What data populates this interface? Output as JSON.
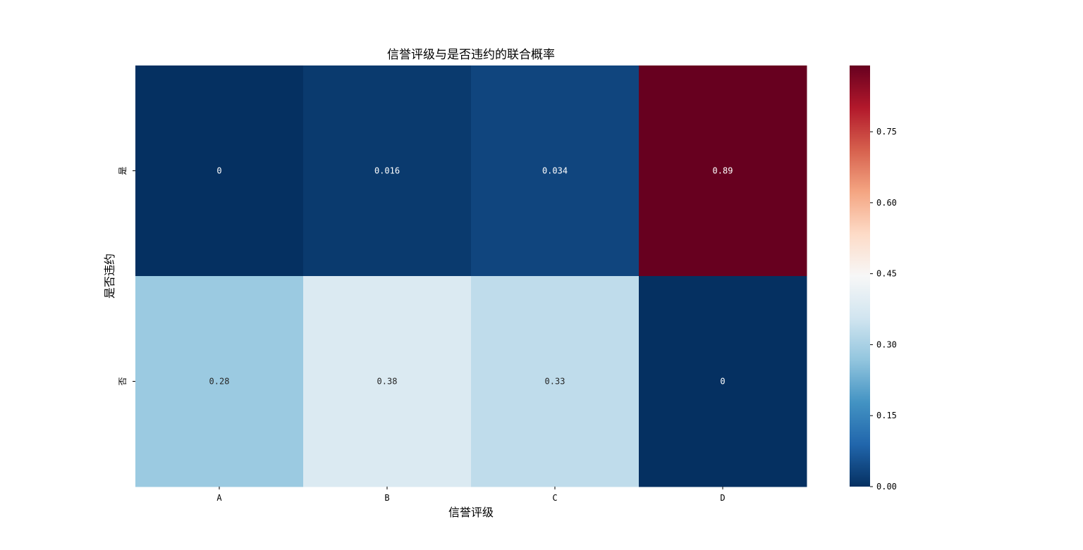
{
  "chart_data": {
    "type": "heatmap",
    "title": "信誉评级与是否违约的联合概率",
    "xlabel": "信誉评级",
    "ylabel": "是否违约",
    "x_categories": [
      "A",
      "B",
      "C",
      "D"
    ],
    "y_categories": [
      "是",
      "否"
    ],
    "values": [
      [
        0,
        0.016,
        0.034,
        0.89
      ],
      [
        0.28,
        0.38,
        0.33,
        0
      ]
    ],
    "value_labels": [
      [
        "0",
        "0.016",
        "0.034",
        "0.89"
      ],
      [
        "0.28",
        "0.38",
        "0.33",
        "0"
      ]
    ],
    "colormap": "RdBu_r",
    "colorbar": {
      "range": [
        0,
        0.89
      ],
      "ticks": [
        0.0,
        0.15,
        0.3,
        0.45,
        0.6,
        0.75
      ],
      "tick_labels": [
        "0.00",
        "0.15",
        "0.30",
        "0.45",
        "0.60",
        "0.75"
      ]
    }
  }
}
